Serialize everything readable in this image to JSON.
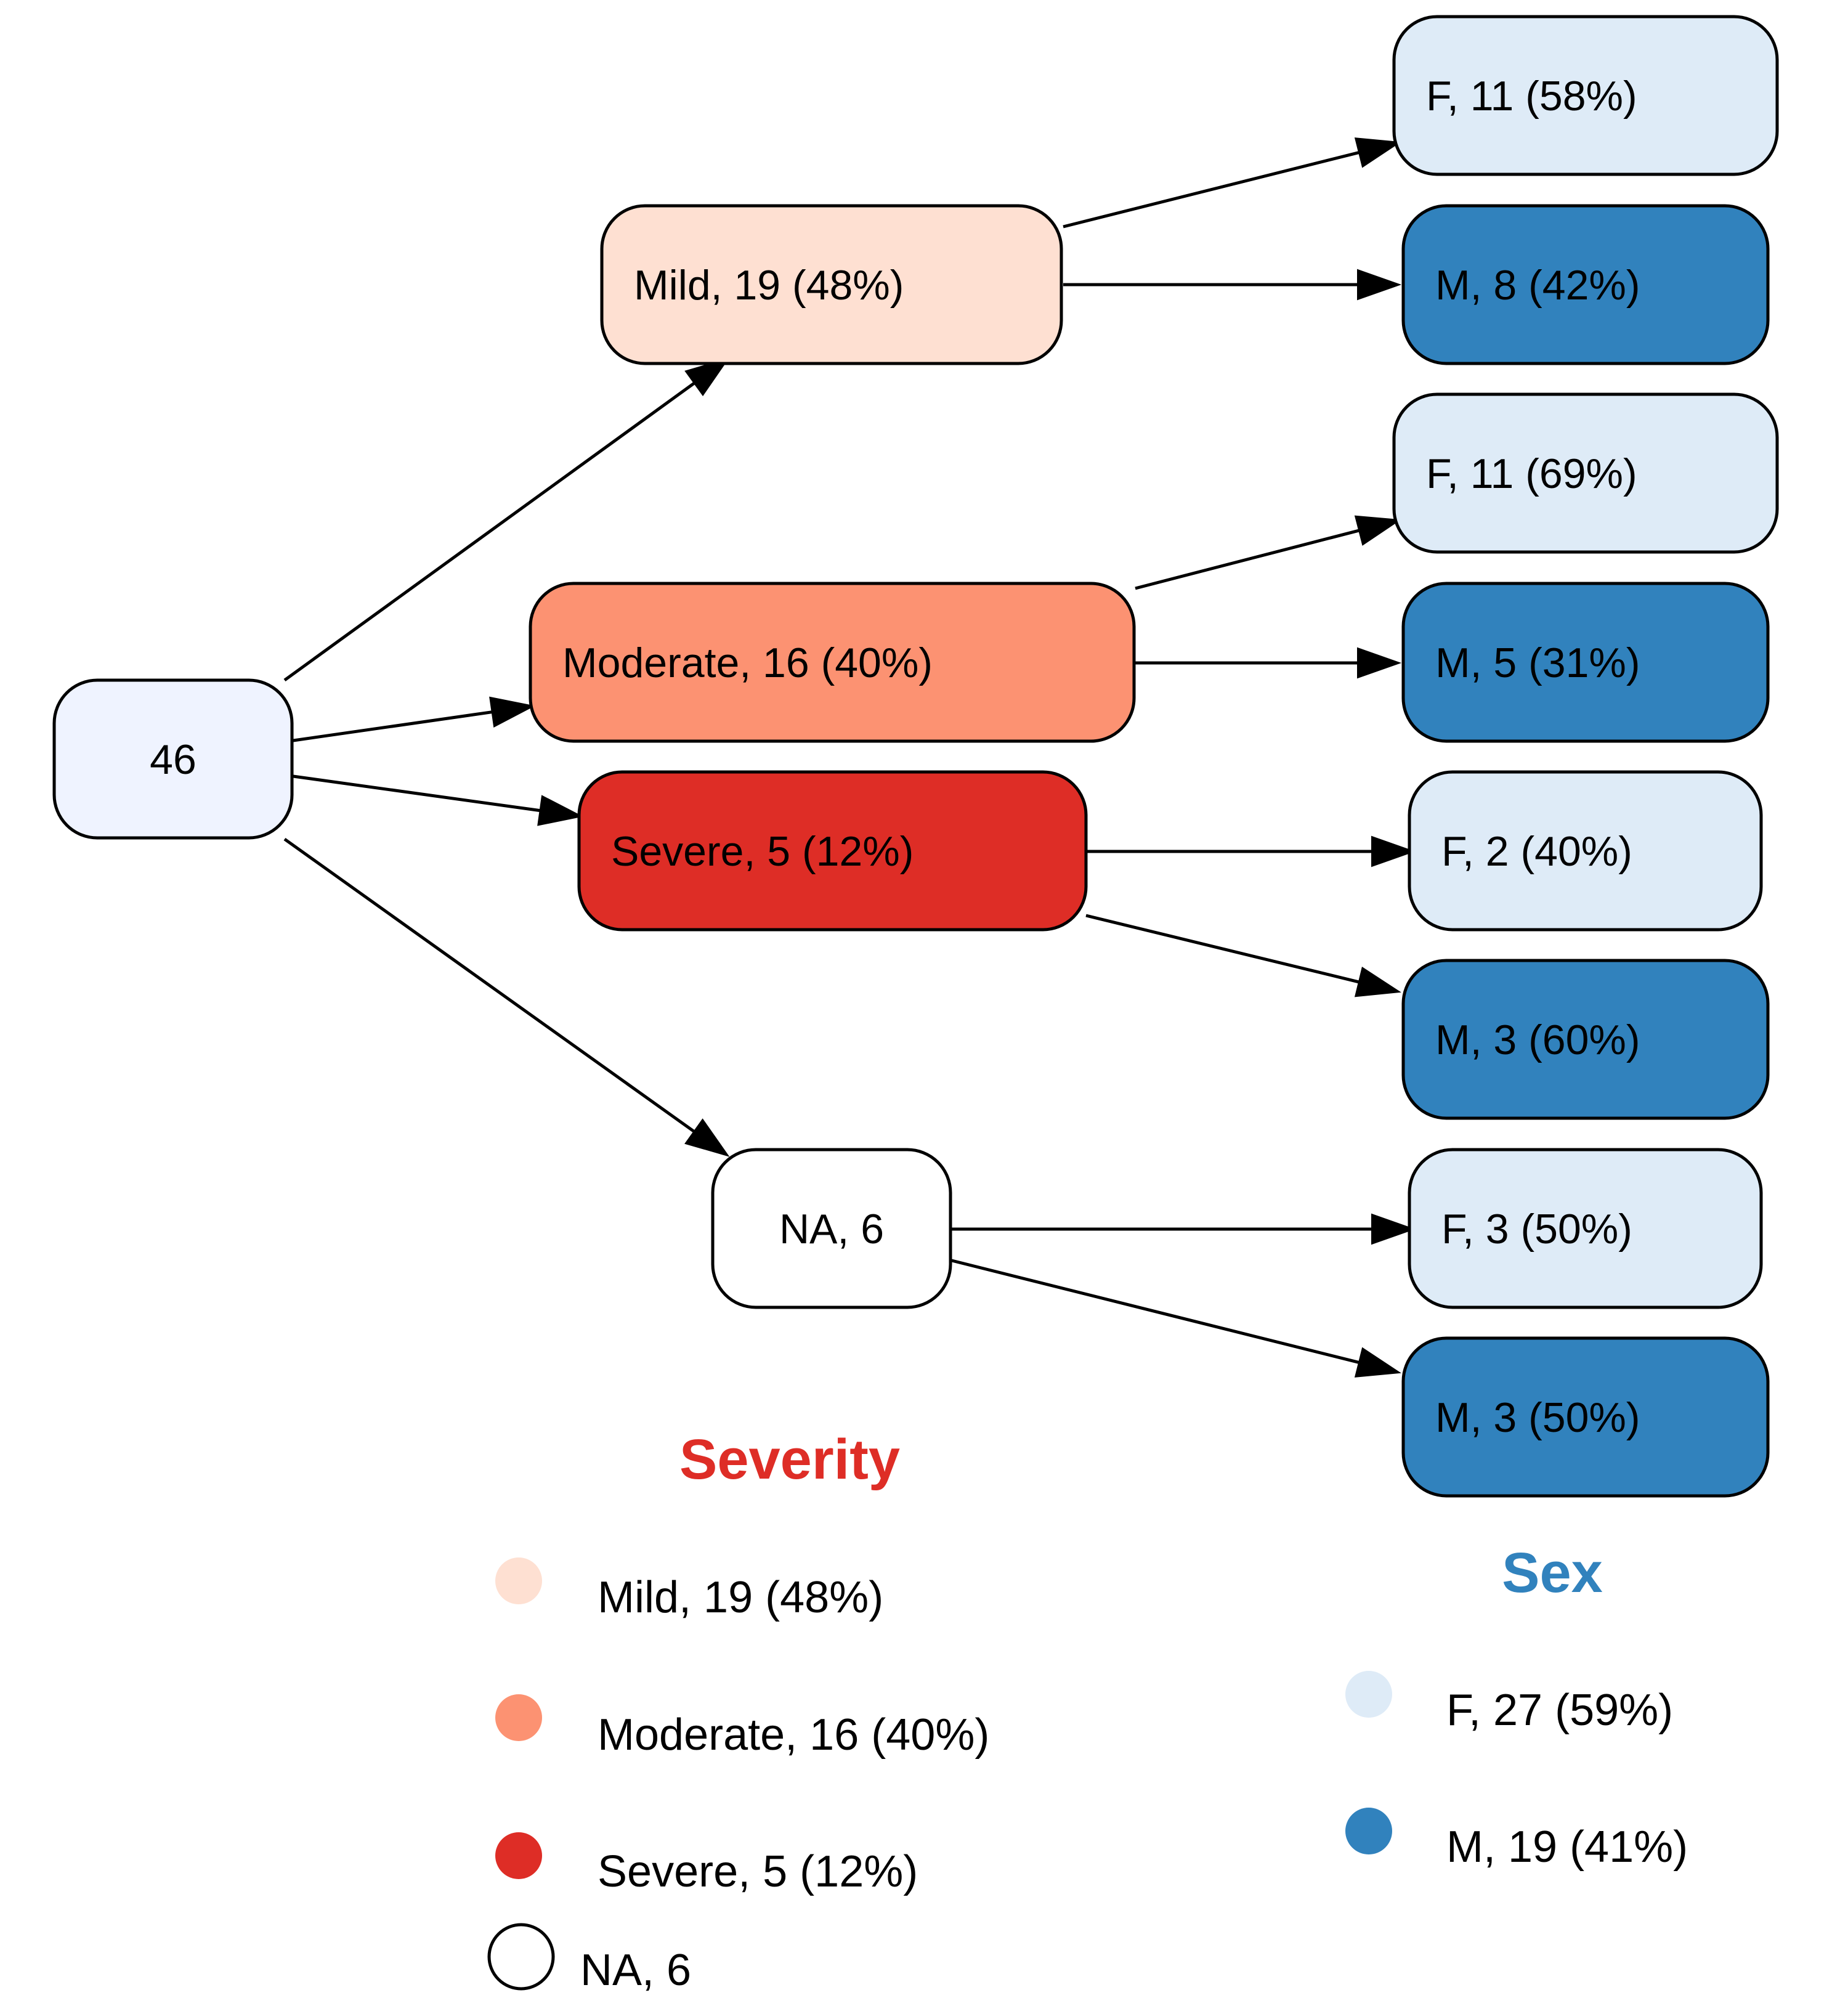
{
  "diagram": {
    "nodes": {
      "root": {
        "label": "46",
        "fill": "#eff3ff"
      },
      "mild": {
        "label": "Mild, 19 (48%)",
        "fill": "#fee0d2"
      },
      "moderate": {
        "label": "Moderate, 16 (40%)",
        "fill": "#fc9272"
      },
      "severe": {
        "label": "Severe, 5 (12%)",
        "fill": "#de2d26"
      },
      "na": {
        "label": "NA, 6",
        "fill": "#ffffff"
      },
      "mild_f": {
        "label": "F, 11 (58%)",
        "fill": "#deebf7"
      },
      "mild_m": {
        "label": "M, 8 (42%)",
        "fill": "#3182bd"
      },
      "moderate_f": {
        "label": "F, 11 (69%)",
        "fill": "#deebf7"
      },
      "moderate_m": {
        "label": "M, 5 (31%)",
        "fill": "#3182bd"
      },
      "severe_f": {
        "label": "F, 2 (40%)",
        "fill": "#deebf7"
      },
      "severe_m": {
        "label": "M, 3 (60%)",
        "fill": "#3182bd"
      },
      "na_f": {
        "label": "F, 3 (50%)",
        "fill": "#deebf7"
      },
      "na_m": {
        "label": "M, 3 (50%)",
        "fill": "#3182bd"
      }
    },
    "edges": [
      [
        "root",
        "mild"
      ],
      [
        "root",
        "moderate"
      ],
      [
        "root",
        "severe"
      ],
      [
        "root",
        "na"
      ],
      [
        "mild",
        "mild_f"
      ],
      [
        "mild",
        "mild_m"
      ],
      [
        "moderate",
        "moderate_f"
      ],
      [
        "moderate",
        "moderate_m"
      ],
      [
        "severe",
        "severe_f"
      ],
      [
        "severe",
        "severe_m"
      ],
      [
        "na",
        "na_f"
      ],
      [
        "na",
        "na_m"
      ]
    ]
  },
  "legend": {
    "severity": {
      "title": "Severity",
      "title_color": "#de2d26",
      "items": [
        {
          "label": "Mild, 19 (48%)",
          "color": "#fee0d2"
        },
        {
          "label": "Moderate, 16 (40%)",
          "color": "#fc9272"
        },
        {
          "label": "Severe, 5 (12%)",
          "color": "#de2d26"
        },
        {
          "label": "NA, 6",
          "color": "#ffffff"
        }
      ]
    },
    "sex": {
      "title": "Sex",
      "title_color": "#3182bd",
      "items": [
        {
          "label": "F, 27 (59%)",
          "color": "#deebf7"
        },
        {
          "label": "M, 19 (41%)",
          "color": "#3182bd"
        }
      ]
    }
  }
}
